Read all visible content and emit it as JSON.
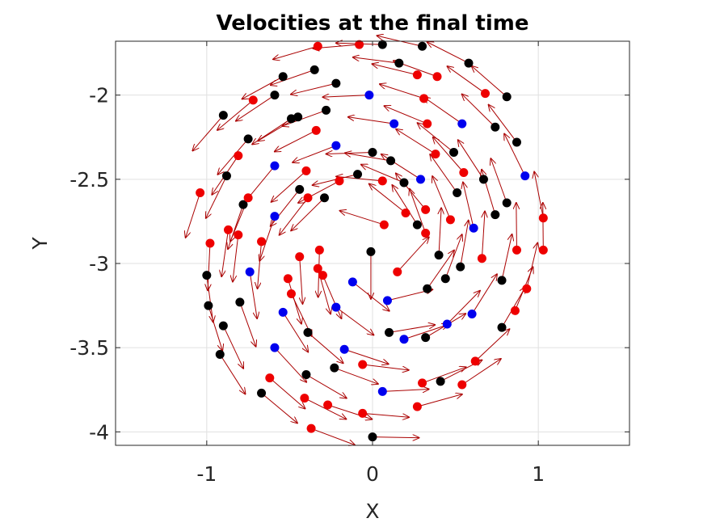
{
  "chart_data": {
    "type": "scatter",
    "title": "Velocities at the final time",
    "xlabel": "X",
    "ylabel": "Y",
    "xlim": [
      -1.55,
      1.55
    ],
    "ylim": [
      -4.08,
      -1.68
    ],
    "xticks": [
      "-1",
      "0",
      "1"
    ],
    "xtick_values": [
      -1,
      0,
      1
    ],
    "yticks": [
      "-2",
      "-2.5",
      "-3",
      "-3.5",
      "-4"
    ],
    "ytick_values": [
      -2,
      -2.5,
      -3,
      -3.5,
      -4
    ],
    "grid": true,
    "colors": {
      "red": "#ee0000",
      "black": "#000000",
      "blue": "#0000ee",
      "arrow": "#aa0000",
      "grid": "#e0e0e0",
      "axis": "#262626"
    },
    "vortex_center": [
      0.02,
      -2.93
    ],
    "arrow_scale": 0.28,
    "points": [
      {
        "x": -1.04,
        "y": -2.58,
        "c": "red"
      },
      {
        "x": -0.98,
        "y": -2.88,
        "c": "red"
      },
      {
        "x": -1.0,
        "y": -3.07,
        "c": "black"
      },
      {
        "x": -0.99,
        "y": -3.25,
        "c": "black"
      },
      {
        "x": -0.9,
        "y": -3.37,
        "c": "black"
      },
      {
        "x": -0.92,
        "y": -3.54,
        "c": "black"
      },
      {
        "x": -0.88,
        "y": -2.48,
        "c": "black"
      },
      {
        "x": -0.9,
        "y": -2.12,
        "c": "black"
      },
      {
        "x": -0.81,
        "y": -2.36,
        "c": "red"
      },
      {
        "x": -0.75,
        "y": -2.26,
        "c": "black"
      },
      {
        "x": -0.72,
        "y": -2.03,
        "c": "red"
      },
      {
        "x": -0.59,
        "y": -2.0,
        "c": "black"
      },
      {
        "x": -0.54,
        "y": -1.89,
        "c": "black"
      },
      {
        "x": -0.35,
        "y": -1.85,
        "c": "black"
      },
      {
        "x": -0.33,
        "y": -1.71,
        "c": "red"
      },
      {
        "x": -0.08,
        "y": -1.7,
        "c": "red"
      },
      {
        "x": 0.06,
        "y": -1.7,
        "c": "black"
      },
      {
        "x": 0.3,
        "y": -1.71,
        "c": "black"
      },
      {
        "x": 0.16,
        "y": -1.81,
        "c": "black"
      },
      {
        "x": 0.27,
        "y": -1.88,
        "c": "red"
      },
      {
        "x": 0.39,
        "y": -1.89,
        "c": "red"
      },
      {
        "x": 0.58,
        "y": -1.81,
        "c": "black"
      },
      {
        "x": -0.22,
        "y": -1.93,
        "c": "black"
      },
      {
        "x": -0.28,
        "y": -2.09,
        "c": "black"
      },
      {
        "x": -0.49,
        "y": -2.14,
        "c": "black"
      },
      {
        "x": -0.45,
        "y": -2.13,
        "c": "black"
      },
      {
        "x": -0.34,
        "y": -2.21,
        "c": "red"
      },
      {
        "x": -0.02,
        "y": -2.0,
        "c": "blue"
      },
      {
        "x": 0.13,
        "y": -2.17,
        "c": "blue"
      },
      {
        "x": 0.31,
        "y": -2.02,
        "c": "red"
      },
      {
        "x": 0.33,
        "y": -2.17,
        "c": "red"
      },
      {
        "x": 0.54,
        "y": -2.17,
        "c": "blue"
      },
      {
        "x": 0.68,
        "y": -1.99,
        "c": "red"
      },
      {
        "x": 0.81,
        "y": -2.01,
        "c": "black"
      },
      {
        "x": 0.74,
        "y": -2.19,
        "c": "black"
      },
      {
        "x": 0.87,
        "y": -2.28,
        "c": "black"
      },
      {
        "x": -0.22,
        "y": -2.3,
        "c": "blue"
      },
      {
        "x": -0.59,
        "y": -2.42,
        "c": "blue"
      },
      {
        "x": -0.78,
        "y": -2.65,
        "c": "black"
      },
      {
        "x": -0.75,
        "y": -2.61,
        "c": "red"
      },
      {
        "x": -0.59,
        "y": -2.72,
        "c": "blue"
      },
      {
        "x": -0.87,
        "y": -2.8,
        "c": "red"
      },
      {
        "x": -0.81,
        "y": -2.83,
        "c": "red"
      },
      {
        "x": -0.67,
        "y": -2.87,
        "c": "red"
      },
      {
        "x": -0.44,
        "y": -2.56,
        "c": "black"
      },
      {
        "x": -0.4,
        "y": -2.45,
        "c": "red"
      },
      {
        "x": -0.39,
        "y": -2.61,
        "c": "red"
      },
      {
        "x": -0.29,
        "y": -2.61,
        "c": "black"
      },
      {
        "x": -0.2,
        "y": -2.51,
        "c": "red"
      },
      {
        "x": -0.09,
        "y": -2.47,
        "c": "black"
      },
      {
        "x": 0.0,
        "y": -2.34,
        "c": "black"
      },
      {
        "x": 0.11,
        "y": -2.39,
        "c": "black"
      },
      {
        "x": 0.19,
        "y": -2.52,
        "c": "black"
      },
      {
        "x": 0.29,
        "y": -2.5,
        "c": "blue"
      },
      {
        "x": 0.38,
        "y": -2.35,
        "c": "red"
      },
      {
        "x": 0.49,
        "y": -2.34,
        "c": "black"
      },
      {
        "x": 0.55,
        "y": -2.46,
        "c": "red"
      },
      {
        "x": 0.67,
        "y": -2.5,
        "c": "black"
      },
      {
        "x": 0.51,
        "y": -2.58,
        "c": "black"
      },
      {
        "x": 0.92,
        "y": -2.48,
        "c": "blue"
      },
      {
        "x": 0.81,
        "y": -2.64,
        "c": "black"
      },
      {
        "x": 0.74,
        "y": -2.71,
        "c": "black"
      },
      {
        "x": 1.03,
        "y": -2.73,
        "c": "red"
      },
      {
        "x": 0.06,
        "y": -2.51,
        "c": "red"
      },
      {
        "x": 0.2,
        "y": -2.7,
        "c": "red"
      },
      {
        "x": 0.32,
        "y": -2.68,
        "c": "red"
      },
      {
        "x": 0.07,
        "y": -2.77,
        "c": "red"
      },
      {
        "x": 0.27,
        "y": -2.77,
        "c": "black"
      },
      {
        "x": 0.32,
        "y": -2.82,
        "c": "red"
      },
      {
        "x": 0.47,
        "y": -2.74,
        "c": "red"
      },
      {
        "x": 0.61,
        "y": -2.79,
        "c": "blue"
      },
      {
        "x": 0.4,
        "y": -2.95,
        "c": "black"
      },
      {
        "x": 0.66,
        "y": -2.97,
        "c": "red"
      },
      {
        "x": 0.87,
        "y": -2.92,
        "c": "red"
      },
      {
        "x": 1.03,
        "y": -2.92,
        "c": "red"
      },
      {
        "x": 0.53,
        "y": -3.02,
        "c": "black"
      },
      {
        "x": 0.44,
        "y": -3.09,
        "c": "black"
      },
      {
        "x": 0.78,
        "y": -3.1,
        "c": "black"
      },
      {
        "x": 0.93,
        "y": -3.15,
        "c": "red"
      },
      {
        "x": 0.33,
        "y": -3.15,
        "c": "black"
      },
      {
        "x": 0.15,
        "y": -3.05,
        "c": "red"
      },
      {
        "x": -0.01,
        "y": -2.93,
        "c": "black"
      },
      {
        "x": -0.12,
        "y": -3.11,
        "c": "blue"
      },
      {
        "x": -0.32,
        "y": -2.92,
        "c": "red"
      },
      {
        "x": -0.33,
        "y": -3.03,
        "c": "red"
      },
      {
        "x": -0.3,
        "y": -3.07,
        "c": "red"
      },
      {
        "x": -0.44,
        "y": -2.96,
        "c": "red"
      },
      {
        "x": -0.51,
        "y": -3.09,
        "c": "red"
      },
      {
        "x": -0.49,
        "y": -3.18,
        "c": "red"
      },
      {
        "x": -0.74,
        "y": -3.05,
        "c": "blue"
      },
      {
        "x": -0.8,
        "y": -3.23,
        "c": "black"
      },
      {
        "x": -0.54,
        "y": -3.29,
        "c": "blue"
      },
      {
        "x": -0.22,
        "y": -3.26,
        "c": "blue"
      },
      {
        "x": 0.09,
        "y": -3.22,
        "c": "blue"
      },
      {
        "x": 0.6,
        "y": -3.3,
        "c": "blue"
      },
      {
        "x": 0.86,
        "y": -3.28,
        "c": "red"
      },
      {
        "x": 0.78,
        "y": -3.38,
        "c": "black"
      },
      {
        "x": 0.45,
        "y": -3.36,
        "c": "blue"
      },
      {
        "x": 0.32,
        "y": -3.44,
        "c": "black"
      },
      {
        "x": 0.19,
        "y": -3.45,
        "c": "blue"
      },
      {
        "x": 0.1,
        "y": -3.41,
        "c": "black"
      },
      {
        "x": -0.39,
        "y": -3.41,
        "c": "black"
      },
      {
        "x": -0.17,
        "y": -3.51,
        "c": "blue"
      },
      {
        "x": -0.59,
        "y": -3.5,
        "c": "blue"
      },
      {
        "x": -0.23,
        "y": -3.62,
        "c": "black"
      },
      {
        "x": -0.4,
        "y": -3.66,
        "c": "black"
      },
      {
        "x": -0.62,
        "y": -3.68,
        "c": "red"
      },
      {
        "x": -0.67,
        "y": -3.77,
        "c": "black"
      },
      {
        "x": -0.41,
        "y": -3.8,
        "c": "red"
      },
      {
        "x": -0.27,
        "y": -3.84,
        "c": "red"
      },
      {
        "x": -0.37,
        "y": -3.98,
        "c": "red"
      },
      {
        "x": -0.06,
        "y": -3.6,
        "c": "red"
      },
      {
        "x": 0.06,
        "y": -3.76,
        "c": "blue"
      },
      {
        "x": -0.06,
        "y": -3.89,
        "c": "red"
      },
      {
        "x": 0.0,
        "y": -4.03,
        "c": "black"
      },
      {
        "x": 0.27,
        "y": -3.85,
        "c": "red"
      },
      {
        "x": 0.3,
        "y": -3.71,
        "c": "red"
      },
      {
        "x": 0.41,
        "y": -3.7,
        "c": "black"
      },
      {
        "x": 0.54,
        "y": -3.72,
        "c": "red"
      },
      {
        "x": 0.62,
        "y": -3.58,
        "c": "red"
      }
    ]
  }
}
